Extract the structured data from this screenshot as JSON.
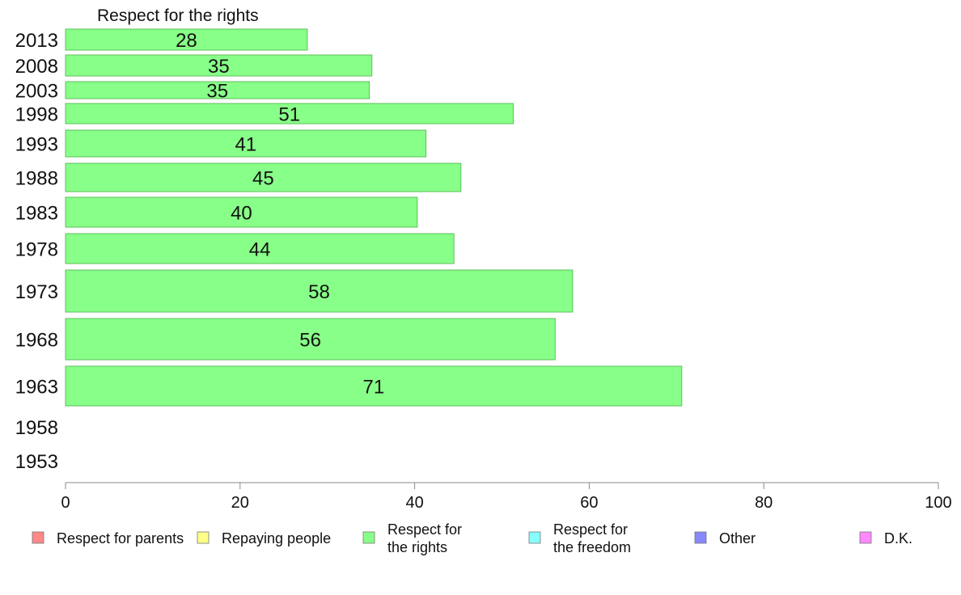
{
  "chart_data": {
    "type": "bar",
    "orientation": "horizontal",
    "title": "Respect for the rights",
    "categories": [
      "2013",
      "2008",
      "2003",
      "1998",
      "1993",
      "1988",
      "1983",
      "1978",
      "1973",
      "1968",
      "1963",
      "1958",
      "1953"
    ],
    "series": [
      {
        "name": "Respect for the rights",
        "color": "#88ff88",
        "values": [
          28,
          35,
          35,
          51,
          41,
          45,
          40,
          44,
          58,
          56,
          71,
          null,
          null
        ],
        "display_values": [
          27.7,
          35.1,
          34.8,
          51.3,
          41.3,
          45.3,
          40.3,
          44.5,
          58.1,
          56.1,
          70.6,
          null,
          null
        ]
      }
    ],
    "xlim": [
      0,
      100
    ],
    "xticks": [
      "0",
      "20",
      "40",
      "60",
      "80",
      "100"
    ],
    "legend": [
      {
        "label": "Respect for parents",
        "color": "#ff8888"
      },
      {
        "label": "Repaying people",
        "color": "#ffff88"
      },
      {
        "label": "Respect for\nthe rights",
        "color": "#88ff88"
      },
      {
        "label": "Respect for\nthe freedom",
        "color": "#88ffff"
      },
      {
        "label": "Other",
        "color": "#8888ff"
      },
      {
        "label": "D.K.",
        "color": "#ff88ff"
      }
    ],
    "legend_position": "bottom",
    "grid": false
  }
}
